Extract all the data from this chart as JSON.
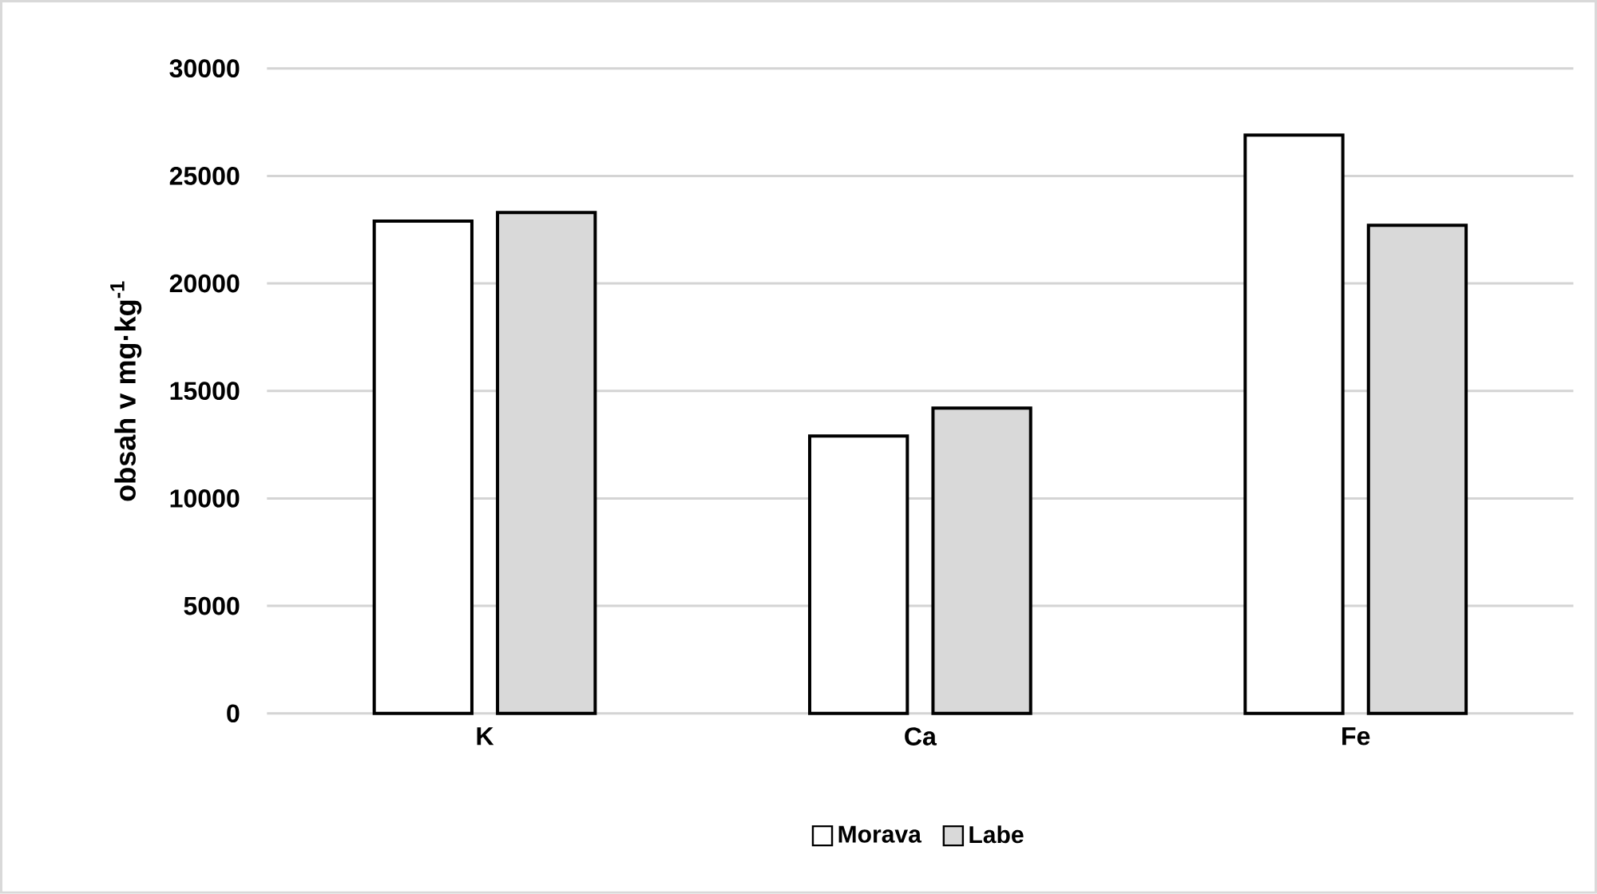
{
  "chart_data": {
    "type": "bar",
    "ylabel": "obsah v mg·kg$^{-1}$",
    "categories": [
      "K",
      "Ca",
      "Fe"
    ],
    "series": [
      {
        "name": "Morava",
        "color": "#ffffff",
        "values": [
          22900,
          12900,
          26900
        ]
      },
      {
        "name": "Labe",
        "color": "#d9d9d9",
        "values": [
          23300,
          14200,
          22700
        ]
      }
    ],
    "ylim": [
      0,
      30000
    ],
    "yticks": [
      0,
      5000,
      10000,
      15000,
      20000,
      25000,
      30000
    ],
    "grid": "y",
    "legend": "bottom"
  }
}
